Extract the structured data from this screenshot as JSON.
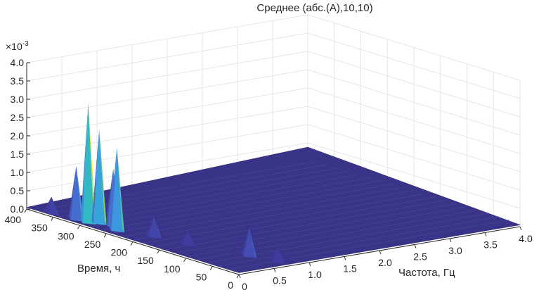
{
  "chart_data": {
    "type": "surface",
    "title": "Среднее (абс.(A),10,10)",
    "xlabel": "Частота, Гц",
    "ylabel": "Время, ч",
    "zlabel": "",
    "z_exponent_label": "×10",
    "z_exponent_value": "-3",
    "xlim": [
      0,
      4.0
    ],
    "ylim": [
      0,
      400
    ],
    "zlim": [
      0,
      0.004
    ],
    "x_ticks": [
      "0",
      "0.5",
      "1.0",
      "1.5",
      "2.0",
      "2.5",
      "3.0",
      "3.5",
      "4.0"
    ],
    "y_ticks": [
      "0",
      "50",
      "100",
      "150",
      "200",
      "250",
      "300",
      "350",
      "400"
    ],
    "z_ticks": [
      "0.0",
      "0.5",
      "1.0",
      "1.5",
      "2.0",
      "2.5",
      "3.0",
      "3.5",
      "4.0"
    ],
    "grid": true,
    "colormap": [
      "#3e2a8a",
      "#4560c8",
      "#3aa0e0",
      "#2cc7b4",
      "#9ed24a",
      "#fbe21e"
    ],
    "peaks": [
      {
        "x": 0.12,
        "y": 300,
        "z": 0.0033
      },
      {
        "x": 0.2,
        "y": 290,
        "z": 0.0026
      },
      {
        "x": 0.15,
        "y": 250,
        "z": 0.0023
      },
      {
        "x": 0.1,
        "y": 320,
        "z": 0.0015
      },
      {
        "x": 0.25,
        "y": 270,
        "z": 0.0016
      },
      {
        "x": 0.05,
        "y": 360,
        "z": 0.0005
      },
      {
        "x": 0.3,
        "y": 200,
        "z": 0.0006
      },
      {
        "x": 0.4,
        "y": 150,
        "z": 0.0004
      },
      {
        "x": 0.6,
        "y": 60,
        "z": 0.0008
      },
      {
        "x": 0.7,
        "y": 20,
        "z": 0.0004
      }
    ]
  }
}
